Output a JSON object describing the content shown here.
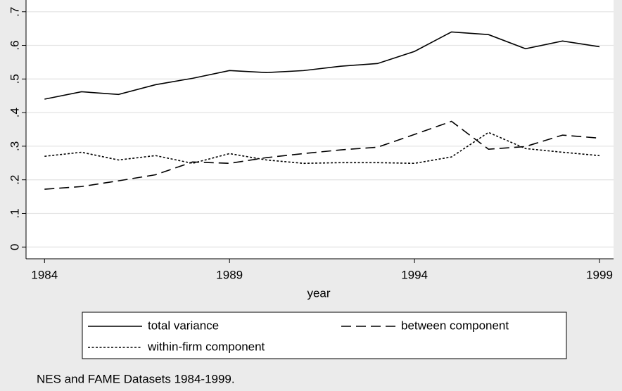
{
  "chart_data": {
    "type": "line",
    "x": [
      1984,
      1985,
      1986,
      1987,
      1988,
      1989,
      1990,
      1991,
      1992,
      1993,
      1994,
      1995,
      1996,
      1997,
      1998,
      1999
    ],
    "series": [
      {
        "name": "total variance",
        "color": "#000000",
        "dash": "solid",
        "values": [
          0.44,
          0.462,
          0.454,
          0.483,
          0.502,
          0.525,
          0.519,
          0.525,
          0.538,
          0.546,
          0.582,
          0.64,
          0.632,
          0.59,
          0.613,
          0.596
        ]
      },
      {
        "name": "between component",
        "color": "#000000",
        "dash": "long",
        "values": [
          0.172,
          0.18,
          0.197,
          0.215,
          0.253,
          0.249,
          0.266,
          0.278,
          0.289,
          0.297,
          0.335,
          0.374,
          0.291,
          0.299,
          0.333,
          0.324
        ]
      },
      {
        "name": "within-firm component",
        "color": "#000000",
        "dash": "short",
        "values": [
          0.27,
          0.282,
          0.259,
          0.272,
          0.249,
          0.278,
          0.259,
          0.249,
          0.251,
          0.251,
          0.249,
          0.268,
          0.341,
          0.293,
          0.282,
          0.272
        ]
      }
    ],
    "x_label": "year",
    "note": "NES and FAME Datasets 1984-1999.",
    "xlim": [
      1983.5,
      1999.38
    ],
    "xticks": [
      1984,
      1989,
      1994,
      1999
    ],
    "ylim": [
      -0.035,
      0.735
    ],
    "yticks": [
      0,
      {
        "value": 0.1,
        "label": ".1"
      },
      {
        "value": 0.2,
        "label": ".2"
      },
      {
        "value": 0.3,
        "label": ".3"
      },
      {
        "value": 0.4,
        "label": ".4"
      },
      {
        "value": 0.5,
        "label": ".5"
      },
      {
        "value": 0.6,
        "label": ".6"
      },
      {
        "value": 0.7,
        "label": ".7"
      }
    ],
    "grid": true,
    "legend": "bottom"
  }
}
